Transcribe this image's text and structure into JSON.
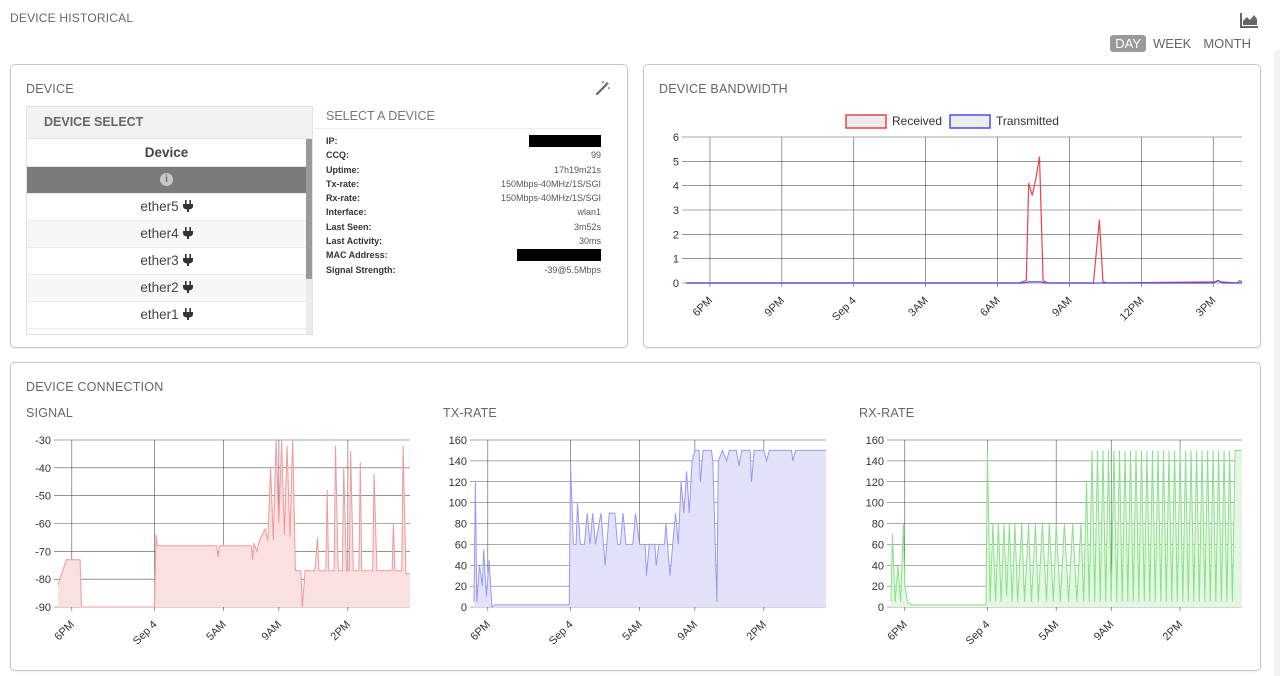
{
  "header": {
    "title": "DEVICE HISTORICAL",
    "chart_icon": "area-chart-icon"
  },
  "range_tabs": [
    {
      "label": "DAY",
      "active": true
    },
    {
      "label": "WEEK",
      "active": false
    },
    {
      "label": "MONTH",
      "active": false
    }
  ],
  "device_panel": {
    "title": "DEVICE",
    "tool_icon": "magic-wand-icon",
    "select": {
      "title": "DEVICE SELECT",
      "column_header": "Device",
      "items": [
        {
          "label": "",
          "icon": "info-icon",
          "selected": true
        },
        {
          "label": "ether5",
          "icon": "plug-icon"
        },
        {
          "label": "ether4",
          "icon": "plug-icon"
        },
        {
          "label": "ether3",
          "icon": "plug-icon"
        },
        {
          "label": "ether2",
          "icon": "plug-icon"
        },
        {
          "label": "ether1",
          "icon": "plug-icon"
        }
      ]
    },
    "info": {
      "title": "SELECT A DEVICE",
      "rows": [
        {
          "key": "IP:",
          "value": "",
          "redacted": true
        },
        {
          "key": "CCQ:",
          "value": "99"
        },
        {
          "key": "Uptime:",
          "value": "17h19m21s"
        },
        {
          "key": "Tx-rate:",
          "value": "150Mbps-40MHz/1S/SGI"
        },
        {
          "key": "Rx-rate:",
          "value": "150Mbps-40MHz/1S/SGI"
        },
        {
          "key": "Interface:",
          "value": "wlan1"
        },
        {
          "key": "Last Seen:",
          "value": "3m52s"
        },
        {
          "key": "Last Activity:",
          "value": "30ms"
        },
        {
          "key": "MAC Address:",
          "value": "",
          "redacted": true
        },
        {
          "key": "Signal Strength:",
          "value": "-39@5.5Mbps"
        }
      ]
    }
  },
  "bandwidth_panel": {
    "title": "DEVICE BANDWIDTH"
  },
  "connection_panel": {
    "title": "DEVICE CONNECTION",
    "signal_title": "SIGNAL",
    "tx_title": "TX-RATE",
    "rx_title": "RX-RATE"
  },
  "colors": {
    "received": "#e8454a",
    "transmitted": "#4a4ae8",
    "signal_line": "#f09a9a",
    "signal_fill": "#fbe0e0",
    "tx_line": "#9a9aef",
    "tx_fill": "#e2e2fa",
    "rx_line": "#8be08b",
    "rx_fill": "#e3f7e3"
  },
  "chart_data": [
    {
      "id": "bandwidth",
      "type": "line",
      "legend": [
        "Received",
        "Transmitted"
      ],
      "legend_position": "top-center",
      "x_ticks": [
        "6PM",
        "9PM",
        "Sep 4",
        "3AM",
        "6AM",
        "9AM",
        "12PM",
        "3PM"
      ],
      "x_tick_hours": [
        1,
        4,
        7,
        10,
        13,
        16,
        19,
        22
      ],
      "x_range_hours": [
        0,
        23.2
      ],
      "ylim": [
        0,
        6
      ],
      "y_ticks": [
        0,
        1,
        2,
        3,
        4,
        5,
        6
      ],
      "grid": true,
      "series": [
        {
          "name": "Received",
          "points": [
            [
              0,
              0
            ],
            [
              13.9,
              0
            ],
            [
              14.2,
              0.1
            ],
            [
              14.3,
              4.1
            ],
            [
              14.45,
              3.6
            ],
            [
              14.6,
              4.3
            ],
            [
              14.75,
              5.2
            ],
            [
              14.9,
              0.1
            ],
            [
              15.1,
              0
            ],
            [
              17.0,
              0
            ],
            [
              17.25,
              2.6
            ],
            [
              17.4,
              0.05
            ],
            [
              17.6,
              0
            ],
            [
              22.1,
              0.05
            ],
            [
              22.2,
              0.1
            ],
            [
              22.3,
              0.05
            ],
            [
              23.0,
              0
            ],
            [
              23.1,
              0.1
            ],
            [
              23.2,
              0.05
            ]
          ]
        },
        {
          "name": "Transmitted",
          "points": [
            [
              0,
              0
            ],
            [
              14.1,
              0
            ],
            [
              14.3,
              0.05
            ],
            [
              14.8,
              0.05
            ],
            [
              15.0,
              0
            ],
            [
              22.0,
              0
            ],
            [
              22.2,
              0.1
            ],
            [
              22.4,
              0
            ],
            [
              23.2,
              0
            ]
          ]
        }
      ]
    },
    {
      "id": "signal",
      "type": "area",
      "x_ticks": [
        "6PM",
        "Sep 4",
        "5AM",
        "9AM",
        "2PM"
      ],
      "x_tick_hours": [
        1,
        7,
        12,
        16,
        21
      ],
      "x_range_hours": [
        0,
        25.5
      ],
      "ylim": [
        -90,
        -30
      ],
      "y_ticks": [
        -30,
        -40,
        -50,
        -60,
        -70,
        -80,
        -90
      ],
      "grid": true,
      "points": [
        [
          0,
          -82
        ],
        [
          0.6,
          -73
        ],
        [
          1.6,
          -73
        ],
        [
          1.7,
          -90
        ],
        [
          7.0,
          -90
        ],
        [
          7.1,
          -64
        ],
        [
          7.2,
          -68
        ],
        [
          11.5,
          -68
        ],
        [
          11.6,
          -72
        ],
        [
          11.7,
          -68
        ],
        [
          14.0,
          -68
        ],
        [
          14.1,
          -73
        ],
        [
          14.2,
          -67
        ],
        [
          14.4,
          -70
        ],
        [
          14.6,
          -66
        ],
        [
          15.0,
          -62
        ],
        [
          15.2,
          -66
        ],
        [
          15.4,
          -40
        ],
        [
          15.6,
          -66
        ],
        [
          15.8,
          -30
        ],
        [
          16.0,
          -60
        ],
        [
          16.2,
          -30
        ],
        [
          16.4,
          -64
        ],
        [
          16.6,
          -32
        ],
        [
          16.8,
          -65
        ],
        [
          17.0,
          -30
        ],
        [
          17.2,
          -77
        ],
        [
          17.6,
          -77
        ],
        [
          17.7,
          -90
        ],
        [
          17.9,
          -77
        ],
        [
          18.6,
          -77
        ],
        [
          18.8,
          -65
        ],
        [
          18.9,
          -77
        ],
        [
          19.4,
          -77
        ],
        [
          19.5,
          -48
        ],
        [
          19.6,
          -77
        ],
        [
          20.0,
          -77
        ],
        [
          20.1,
          -32
        ],
        [
          20.3,
          -77
        ],
        [
          20.6,
          -77
        ],
        [
          20.7,
          -40
        ],
        [
          20.9,
          -77
        ],
        [
          21.1,
          -77
        ],
        [
          21.2,
          -34
        ],
        [
          21.4,
          -77
        ],
        [
          21.8,
          -77
        ],
        [
          21.9,
          -38
        ],
        [
          22.0,
          -77
        ],
        [
          22.8,
          -77
        ],
        [
          22.9,
          -42
        ],
        [
          23.1,
          -77
        ],
        [
          24.2,
          -77
        ],
        [
          24.3,
          -60
        ],
        [
          24.4,
          -77
        ],
        [
          24.9,
          -77
        ],
        [
          25.0,
          -32
        ],
        [
          25.2,
          -78
        ],
        [
          25.5,
          -78
        ]
      ]
    },
    {
      "id": "tx_rate",
      "type": "area",
      "x_ticks": [
        "6PM",
        "Sep 4",
        "5AM",
        "9AM",
        "2PM"
      ],
      "x_tick_hours": [
        1,
        7,
        12,
        16,
        21
      ],
      "x_range_hours": [
        0,
        25.5
      ],
      "ylim": [
        0,
        160
      ],
      "y_ticks": [
        0,
        20,
        40,
        60,
        80,
        100,
        120,
        140,
        160
      ],
      "grid": true,
      "points": [
        [
          0,
          5
        ],
        [
          0.1,
          120
        ],
        [
          0.2,
          5
        ],
        [
          0.4,
          40
        ],
        [
          0.6,
          20
        ],
        [
          0.7,
          55
        ],
        [
          0.9,
          10
        ],
        [
          1.1,
          45
        ],
        [
          1.3,
          0
        ],
        [
          1.5,
          2
        ],
        [
          6.9,
          2
        ],
        [
          7.0,
          135
        ],
        [
          7.2,
          60
        ],
        [
          7.4,
          60
        ],
        [
          7.5,
          100
        ],
        [
          7.7,
          60
        ],
        [
          8.0,
          60
        ],
        [
          8.2,
          90
        ],
        [
          8.4,
          60
        ],
        [
          8.6,
          90
        ],
        [
          8.8,
          60
        ],
        [
          9.2,
          90
        ],
        [
          9.5,
          40
        ],
        [
          9.8,
          90
        ],
        [
          10.2,
          90
        ],
        [
          10.4,
          60
        ],
        [
          10.6,
          60
        ],
        [
          10.8,
          90
        ],
        [
          11.0,
          60
        ],
        [
          11.5,
          60
        ],
        [
          11.7,
          90
        ],
        [
          12.0,
          60
        ],
        [
          12.4,
          60
        ],
        [
          12.5,
          30
        ],
        [
          12.7,
          60
        ],
        [
          13.1,
          60
        ],
        [
          13.2,
          40
        ],
        [
          13.4,
          60
        ],
        [
          13.8,
          60
        ],
        [
          13.9,
          80
        ],
        [
          14.2,
          30
        ],
        [
          14.6,
          90
        ],
        [
          14.8,
          60
        ],
        [
          15.0,
          120
        ],
        [
          15.2,
          90
        ],
        [
          15.4,
          130
        ],
        [
          15.6,
          90
        ],
        [
          15.8,
          140
        ],
        [
          16.0,
          150
        ],
        [
          16.3,
          150
        ],
        [
          16.4,
          120
        ],
        [
          16.6,
          150
        ],
        [
          17.2,
          150
        ],
        [
          17.3,
          140
        ],
        [
          17.6,
          5
        ],
        [
          17.7,
          140
        ],
        [
          18.0,
          150
        ],
        [
          18.3,
          140
        ],
        [
          18.5,
          150
        ],
        [
          19.0,
          150
        ],
        [
          19.2,
          135
        ],
        [
          19.4,
          150
        ],
        [
          20.0,
          150
        ],
        [
          20.1,
          120
        ],
        [
          20.3,
          150
        ],
        [
          21.0,
          150
        ],
        [
          21.2,
          140
        ],
        [
          21.4,
          150
        ],
        [
          23.0,
          150
        ],
        [
          23.1,
          140
        ],
        [
          23.3,
          150
        ],
        [
          25.5,
          150
        ]
      ]
    },
    {
      "id": "rx_rate",
      "type": "area",
      "x_ticks": [
        "6PM",
        "Sep 4",
        "5AM",
        "9AM",
        "2PM"
      ],
      "x_tick_hours": [
        1,
        7,
        12,
        16,
        21
      ],
      "x_range_hours": [
        0,
        25.5
      ],
      "ylim": [
        0,
        160
      ],
      "y_ticks": [
        0,
        20,
        40,
        60,
        80,
        100,
        120,
        140,
        160
      ],
      "grid": true,
      "points": [
        [
          0,
          5
        ],
        [
          0.1,
          70
        ],
        [
          0.3,
          5
        ],
        [
          0.5,
          40
        ],
        [
          0.7,
          5
        ],
        [
          0.9,
          80
        ],
        [
          1.0,
          20
        ],
        [
          1.2,
          5
        ],
        [
          1.5,
          2
        ],
        [
          6.9,
          2
        ],
        [
          7.0,
          150
        ],
        [
          7.2,
          5
        ],
        [
          7.4,
          80
        ],
        [
          7.6,
          5
        ],
        [
          7.8,
          80
        ],
        [
          8.0,
          5
        ],
        [
          8.2,
          80
        ],
        [
          8.4,
          10
        ],
        [
          8.6,
          80
        ],
        [
          8.8,
          5
        ],
        [
          9.0,
          80
        ],
        [
          9.2,
          5
        ],
        [
          9.5,
          80
        ],
        [
          9.7,
          5
        ],
        [
          10.0,
          80
        ],
        [
          10.2,
          5
        ],
        [
          10.5,
          80
        ],
        [
          10.7,
          5
        ],
        [
          11.0,
          80
        ],
        [
          11.3,
          5
        ],
        [
          11.5,
          80
        ],
        [
          11.8,
          5
        ],
        [
          12.0,
          80
        ],
        [
          12.3,
          5
        ],
        [
          12.6,
          80
        ],
        [
          12.9,
          5
        ],
        [
          13.2,
          80
        ],
        [
          13.5,
          5
        ],
        [
          13.8,
          80
        ],
        [
          14.0,
          5
        ],
        [
          14.2,
          120
        ],
        [
          14.4,
          5
        ],
        [
          14.6,
          150
        ],
        [
          14.8,
          5
        ],
        [
          15.0,
          150
        ],
        [
          15.2,
          5
        ],
        [
          15.4,
          150
        ],
        [
          15.6,
          5
        ],
        [
          15.8,
          150
        ],
        [
          16.0,
          5
        ],
        [
          16.2,
          150
        ],
        [
          16.4,
          5
        ],
        [
          16.6,
          150
        ],
        [
          16.8,
          5
        ],
        [
          17.0,
          150
        ],
        [
          17.2,
          5
        ],
        [
          17.4,
          150
        ],
        [
          17.6,
          5
        ],
        [
          17.8,
          150
        ],
        [
          18.0,
          5
        ],
        [
          18.2,
          150
        ],
        [
          18.4,
          5
        ],
        [
          18.6,
          150
        ],
        [
          18.8,
          5
        ],
        [
          19.0,
          150
        ],
        [
          19.2,
          5
        ],
        [
          19.4,
          150
        ],
        [
          19.6,
          5
        ],
        [
          19.8,
          150
        ],
        [
          20.0,
          5
        ],
        [
          20.2,
          150
        ],
        [
          20.4,
          5
        ],
        [
          20.6,
          150
        ],
        [
          20.8,
          5
        ],
        [
          21.0,
          150
        ],
        [
          21.2,
          5
        ],
        [
          21.4,
          150
        ],
        [
          21.6,
          5
        ],
        [
          21.8,
          150
        ],
        [
          22.0,
          5
        ],
        [
          22.2,
          150
        ],
        [
          22.4,
          5
        ],
        [
          22.6,
          150
        ],
        [
          22.8,
          5
        ],
        [
          23.0,
          150
        ],
        [
          23.2,
          5
        ],
        [
          23.4,
          150
        ],
        [
          23.6,
          5
        ],
        [
          23.8,
          150
        ],
        [
          24.0,
          5
        ],
        [
          24.2,
          150
        ],
        [
          24.4,
          5
        ],
        [
          24.6,
          150
        ],
        [
          24.8,
          5
        ],
        [
          25.0,
          150
        ],
        [
          25.5,
          150
        ]
      ]
    }
  ]
}
